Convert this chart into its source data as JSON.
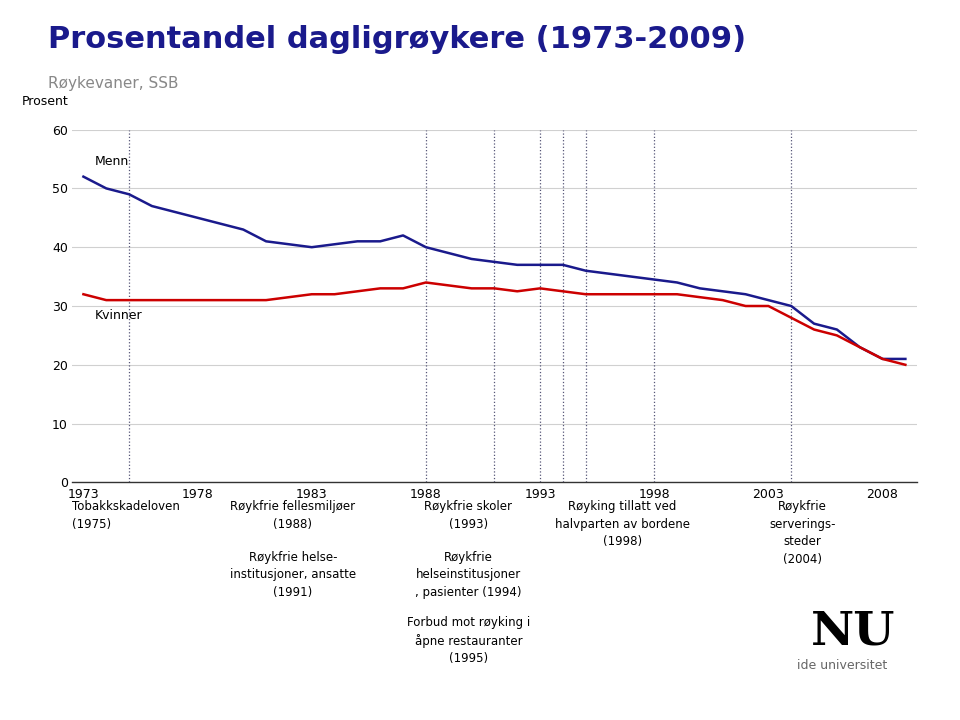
{
  "title": "Prosentandel dagligrøykere (1973-2009)",
  "subtitle": "Røykevaner, SSB",
  "ylabel": "Prosent",
  "bg_color": "#ffffff",
  "plot_bg_color": "#ffffff",
  "menn_color": "#1a1a8c",
  "kvinner_color": "#cc0000",
  "vline_color": "#555577",
  "grid_color": "#d0d0d0",
  "title_color": "#1a1a8c",
  "subtitle_color": "#888888",
  "ylim": [
    0,
    60
  ],
  "yticks": [
    0,
    10,
    20,
    30,
    40,
    50,
    60
  ],
  "xlim": [
    1973,
    2009
  ],
  "xticks": [
    1973,
    1978,
    1983,
    1988,
    1993,
    1998,
    2003,
    2008
  ],
  "menn_x": [
    1973,
    1974,
    1975,
    1976,
    1977,
    1978,
    1979,
    1980,
    1981,
    1982,
    1983,
    1984,
    1985,
    1986,
    1987,
    1988,
    1989,
    1990,
    1991,
    1992,
    1993,
    1994,
    1995,
    1996,
    1997,
    1998,
    1999,
    2000,
    2001,
    2002,
    2003,
    2004,
    2005,
    2006,
    2007,
    2008,
    2009
  ],
  "menn_y": [
    52,
    50,
    49,
    47,
    46,
    45,
    44,
    43,
    41,
    40.5,
    40,
    40.5,
    41,
    41,
    42,
    40,
    39,
    38,
    37.5,
    37,
    37,
    37,
    36,
    35.5,
    35,
    34.5,
    34,
    33,
    32.5,
    32,
    31,
    30,
    27,
    26,
    23,
    21,
    21
  ],
  "kvinner_x": [
    1973,
    1974,
    1975,
    1976,
    1977,
    1978,
    1979,
    1980,
    1981,
    1982,
    1983,
    1984,
    1985,
    1986,
    1987,
    1988,
    1989,
    1990,
    1991,
    1992,
    1993,
    1994,
    1995,
    1996,
    1997,
    1998,
    1999,
    2000,
    2001,
    2002,
    2003,
    2004,
    2005,
    2006,
    2007,
    2008,
    2009
  ],
  "kvinner_y": [
    32,
    31,
    31,
    31,
    31,
    31,
    31,
    31,
    31,
    31.5,
    32,
    32,
    32.5,
    33,
    33,
    34,
    33.5,
    33,
    33,
    32.5,
    33,
    32.5,
    32,
    32,
    32,
    32,
    32,
    31.5,
    31,
    30,
    30,
    28,
    26,
    25,
    23,
    21,
    20
  ],
  "vlines": [
    1975,
    1988,
    1991,
    1993,
    1994,
    1995,
    1998,
    2004
  ],
  "bottom_bar_color": "#1a3a9c",
  "bottom_bar_width": 0.12
}
